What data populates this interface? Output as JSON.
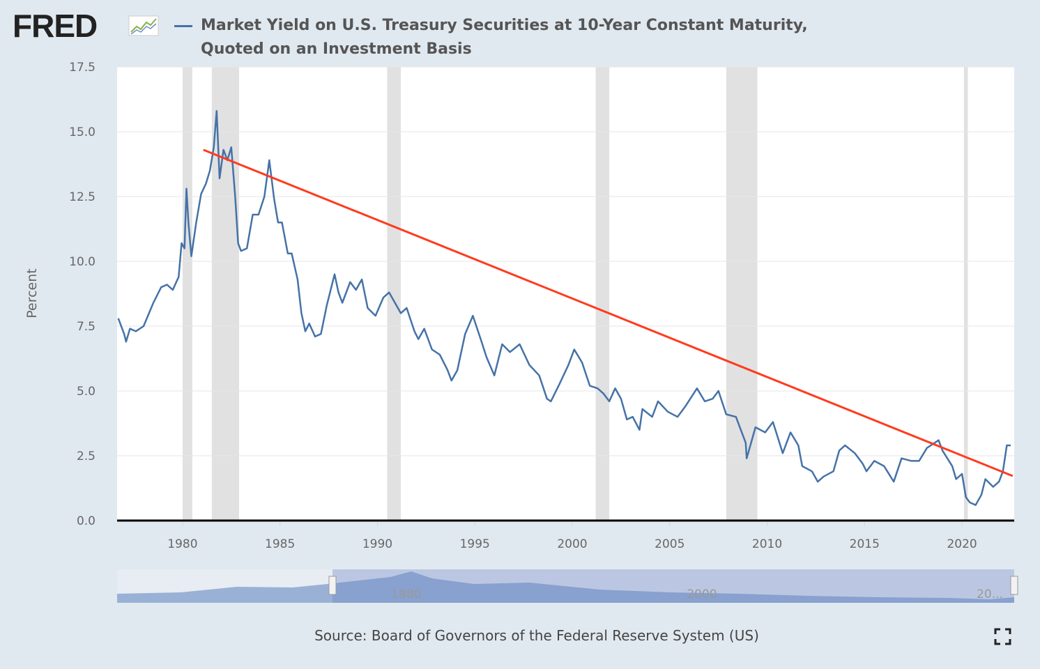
{
  "logo": "FRED",
  "source": "Source: Board of Governors of the Federal Reserve System (US)",
  "navigator": {
    "labels": [
      "1980",
      "2000",
      "20..."
    ]
  },
  "chart_data": {
    "type": "line",
    "y_label": "Percent",
    "xlim": [
      1976.64,
      2022.68
    ],
    "ylim": [
      0,
      17.5
    ],
    "xticks": [
      1980,
      1985,
      1990,
      1995,
      2000,
      2005,
      2010,
      2015,
      2020
    ],
    "yticks": [
      {
        "value": 0,
        "label": "0.0"
      },
      2.5,
      {
        "value": 5,
        "label": "5.0"
      },
      7.5,
      {
        "value": 10,
        "label": "10.0"
      },
      12.5,
      {
        "value": 15,
        "label": "15.0"
      },
      17.5
    ],
    "grid": true,
    "recessions": [
      [
        1980.0,
        1980.5
      ],
      [
        1981.5,
        1982.9
      ],
      [
        1990.5,
        1991.2
      ],
      [
        2001.2,
        2001.9
      ],
      [
        2007.9,
        2009.5
      ],
      [
        2020.1,
        2020.3
      ]
    ],
    "recession_color": "#e1e1e1",
    "trend_line": {
      "x": [
        1981.07,
        2022.6
      ],
      "values": [
        14.3,
        1.72
      ],
      "color": "#ff3b1f"
    },
    "x": [
      1976.7,
      1977.0,
      1977.1,
      1977.3,
      1977.6,
      1978.0,
      1978.5,
      1978.9,
      1979.2,
      1979.5,
      1979.8,
      1979.95,
      1980.1,
      1980.2,
      1980.3,
      1980.45,
      1980.7,
      1980.95,
      1981.2,
      1981.4,
      1981.6,
      1981.75,
      1981.9,
      1982.1,
      1982.3,
      1982.5,
      1982.7,
      1982.85,
      1983.0,
      1983.3,
      1983.6,
      1983.9,
      1984.2,
      1984.45,
      1984.7,
      1984.9,
      1985.1,
      1985.4,
      1985.6,
      1985.9,
      1986.1,
      1986.3,
      1986.5,
      1986.8,
      1987.1,
      1987.4,
      1987.8,
      1988.0,
      1988.2,
      1988.6,
      1988.9,
      1989.2,
      1989.5,
      1989.9,
      1990.3,
      1990.6,
      1990.9,
      1991.2,
      1991.5,
      1991.9,
      1992.1,
      1992.4,
      1992.8,
      1993.2,
      1993.6,
      1993.8,
      1994.1,
      1994.5,
      1994.9,
      1995.3,
      1995.6,
      1996.0,
      1996.4,
      1996.8,
      1997.3,
      1997.8,
      1998.3,
      1998.7,
      1998.9,
      1999.3,
      1999.8,
      2000.1,
      2000.5,
      2000.9,
      2001.3,
      2001.6,
      2001.9,
      2002.2,
      2002.5,
      2002.8,
      2003.1,
      2003.45,
      2003.6,
      2004.1,
      2004.4,
      2004.9,
      2005.4,
      2005.8,
      2006.4,
      2006.8,
      2007.2,
      2007.5,
      2007.9,
      2008.4,
      2008.9,
      2008.95,
      2009.4,
      2009.9,
      2010.3,
      2010.8,
      2011.2,
      2011.6,
      2011.8,
      2012.3,
      2012.6,
      2012.9,
      2013.4,
      2013.7,
      2014.0,
      2014.5,
      2014.9,
      2015.1,
      2015.5,
      2016.0,
      2016.5,
      2016.9,
      2017.4,
      2017.8,
      2018.2,
      2018.8,
      2019.0,
      2019.5,
      2019.7,
      2020.0,
      2020.2,
      2020.4,
      2020.7,
      2021.0,
      2021.2,
      2021.6,
      2021.9,
      2022.1,
      2022.3,
      2022.5
    ],
    "series": [
      {
        "name": "Market Yield on U.S. Treasury Securities at 10-Year Constant Maturity, Quoted on an Investment Basis",
        "color": "#4572a7",
        "values": [
          7.8,
          7.2,
          6.9,
          7.4,
          7.3,
          7.5,
          8.4,
          9.0,
          9.1,
          8.9,
          9.4,
          10.7,
          10.5,
          12.8,
          11.5,
          10.2,
          11.5,
          12.6,
          13.0,
          13.5,
          14.4,
          15.8,
          13.2,
          14.3,
          13.9,
          14.4,
          12.5,
          10.7,
          10.4,
          10.5,
          11.8,
          11.8,
          12.5,
          13.9,
          12.4,
          11.5,
          11.5,
          10.3,
          10.3,
          9.3,
          8.0,
          7.3,
          7.6,
          7.1,
          7.2,
          8.3,
          9.5,
          8.8,
          8.4,
          9.2,
          8.9,
          9.3,
          8.2,
          7.9,
          8.6,
          8.8,
          8.4,
          8.0,
          8.2,
          7.3,
          7.0,
          7.4,
          6.6,
          6.4,
          5.8,
          5.4,
          5.8,
          7.2,
          7.9,
          7.0,
          6.3,
          5.6,
          6.8,
          6.5,
          6.8,
          6.0,
          5.6,
          4.7,
          4.6,
          5.2,
          6.0,
          6.6,
          6.1,
          5.2,
          5.1,
          4.9,
          4.6,
          5.1,
          4.7,
          3.9,
          4.0,
          3.5,
          4.3,
          4.0,
          4.6,
          4.2,
          4.0,
          4.4,
          5.1,
          4.6,
          4.7,
          5.0,
          4.1,
          4.0,
          3.0,
          2.4,
          3.6,
          3.4,
          3.8,
          2.6,
          3.4,
          2.9,
          2.1,
          1.9,
          1.5,
          1.7,
          1.9,
          2.7,
          2.9,
          2.6,
          2.2,
          1.9,
          2.3,
          2.1,
          1.5,
          2.4,
          2.3,
          2.3,
          2.8,
          3.1,
          2.7,
          2.1,
          1.6,
          1.8,
          0.9,
          0.7,
          0.6,
          1.0,
          1.6,
          1.3,
          1.5,
          1.9,
          2.9,
          2.9
        ]
      }
    ]
  }
}
